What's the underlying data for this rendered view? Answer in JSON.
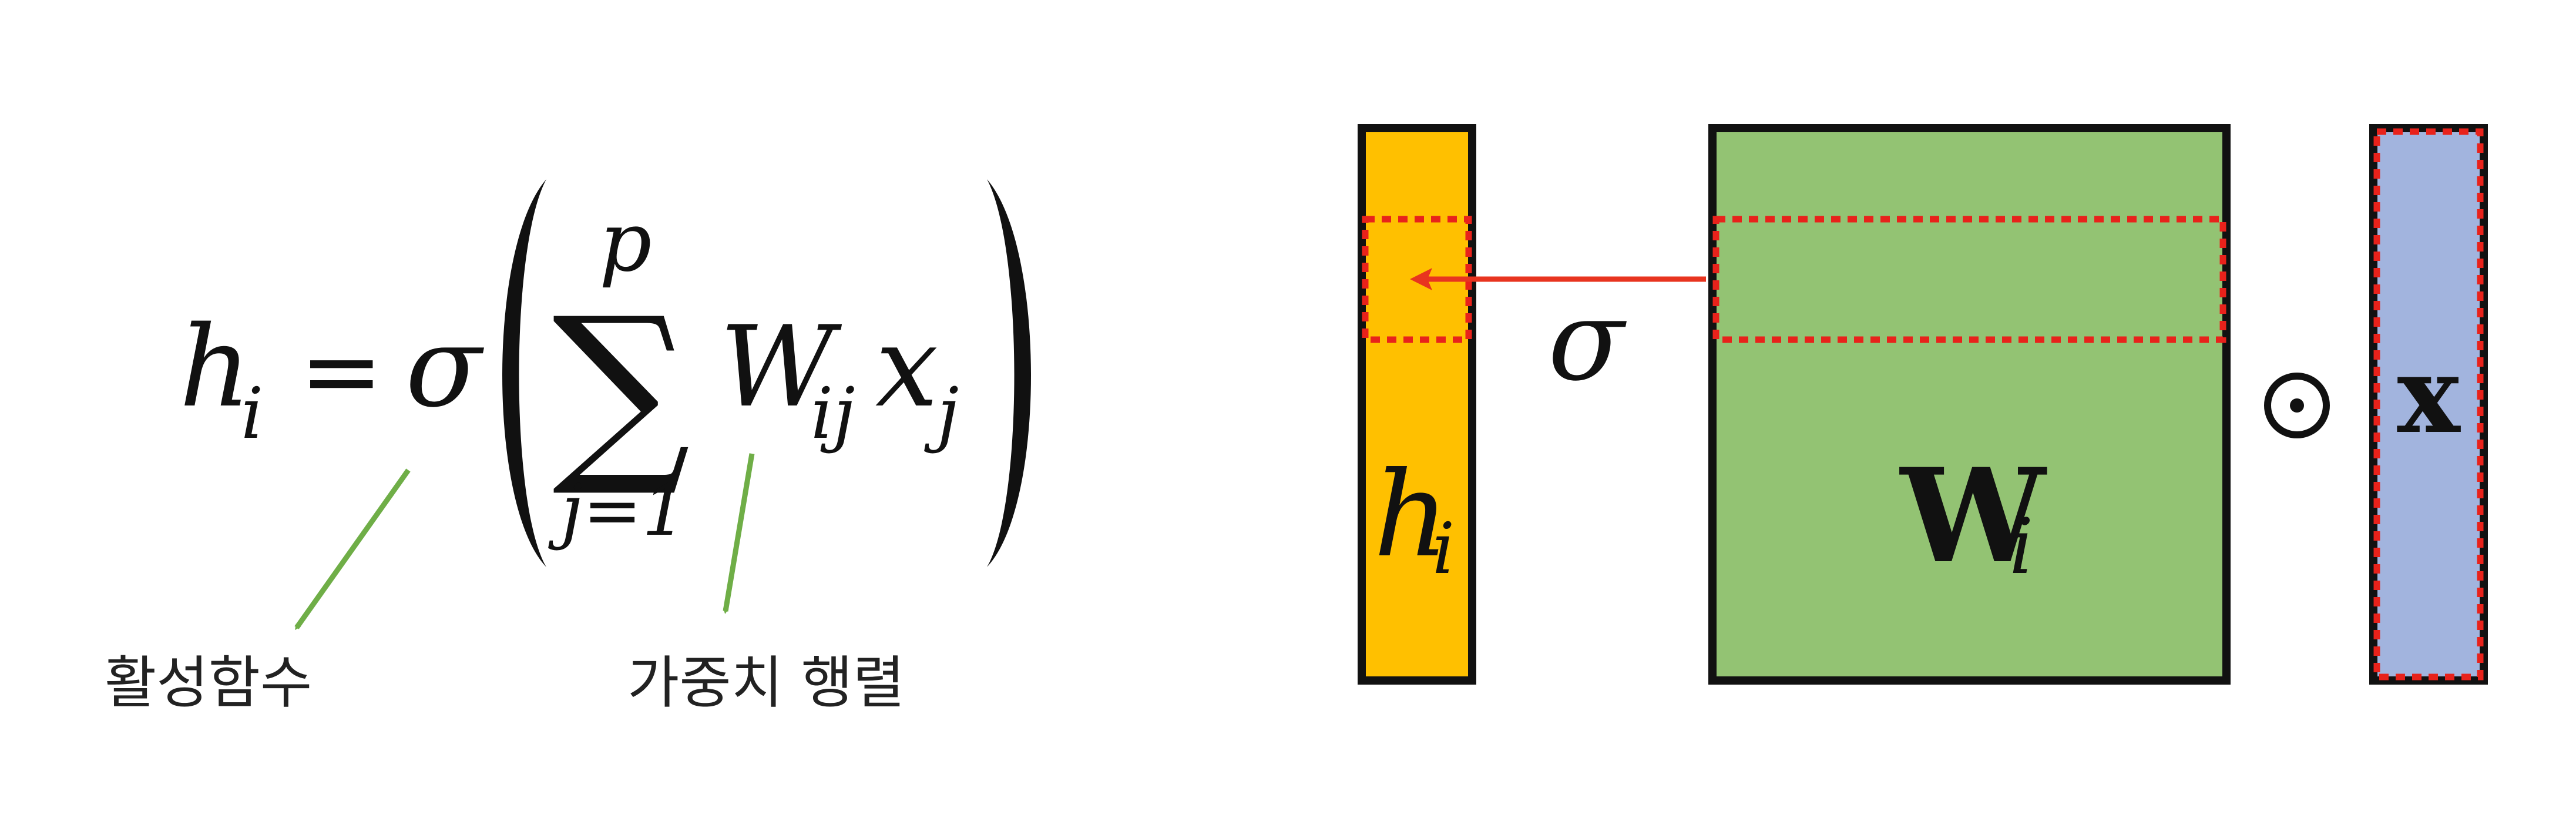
{
  "formula": {
    "lhs_symbol": "h",
    "lhs_subscript": "i",
    "equals": "=",
    "activation_symbol": "σ",
    "sum_symbol": "∑",
    "sum_upper": "p",
    "sum_lower": "j=1",
    "weight_symbol": "W",
    "weight_subscript": "ij",
    "input_symbol": "x",
    "input_subscript": "j"
  },
  "annotations": {
    "activation_label": "활성함수",
    "weight_label": "가중치 행렬"
  },
  "diagram": {
    "output_label": "h",
    "output_subscript": "i",
    "activation_symbol": "σ",
    "weight_label": "W",
    "weight_subscript": "i",
    "operator_symbol": "⊙",
    "input_label": "x"
  },
  "colors": {
    "output_fill": "#FFC000",
    "weight_fill": "#93C373",
    "input_fill": "#A2B4DE",
    "highlight_dash": "#E8221B",
    "arrow_red": "#E8341F",
    "annotation_arrow": "#6FAE47",
    "outline": "#111111"
  }
}
